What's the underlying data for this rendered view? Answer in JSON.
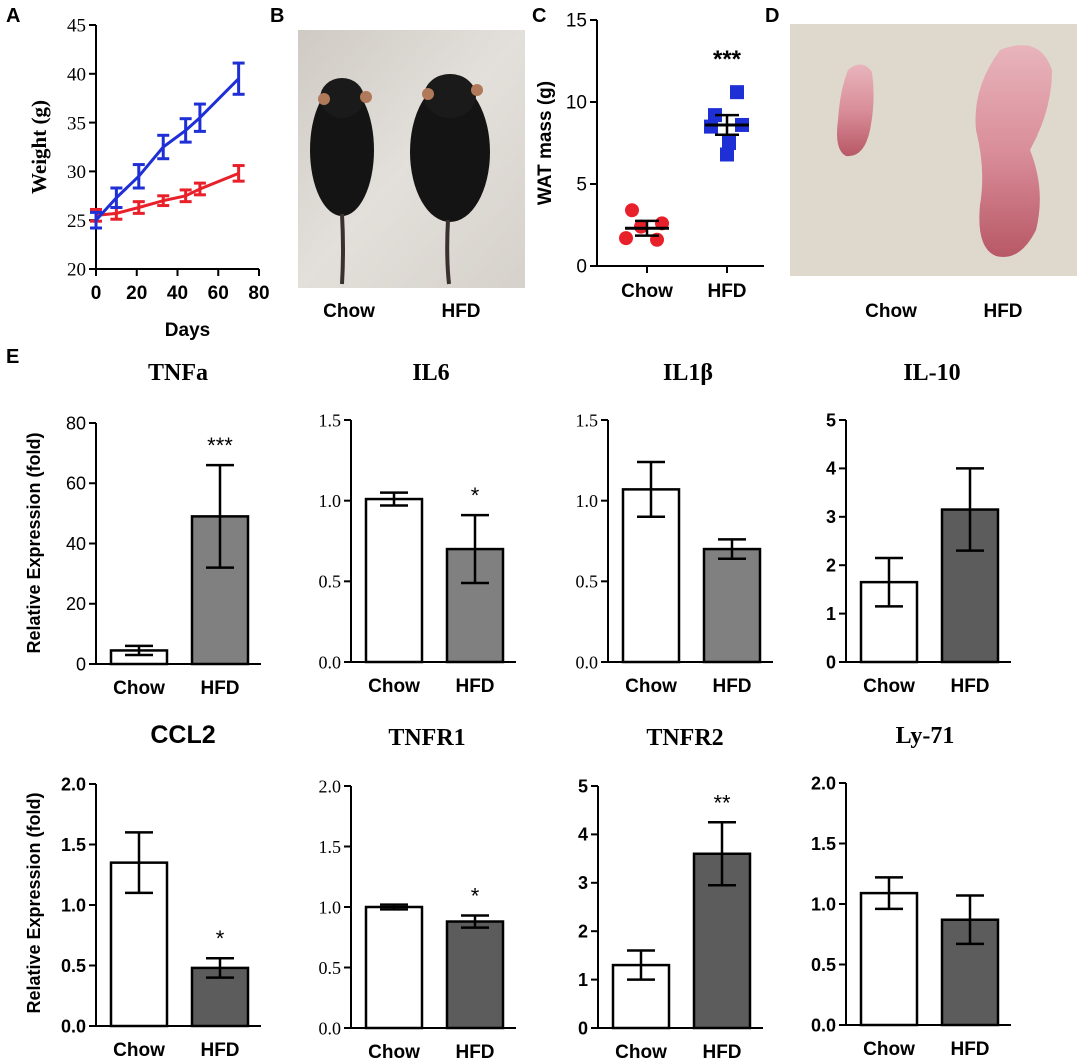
{
  "panel_labels": [
    "A",
    "B",
    "C",
    "D",
    "E"
  ],
  "colors": {
    "chow_line": "#e8202a",
    "hfd_line": "#1f2fd6",
    "bar_chow": "#ffffff",
    "bar_hfd_light": "#808080",
    "bar_hfd_dark": "#5c5c5c",
    "axis": "#000000"
  },
  "photos": {
    "mice": {
      "labels": [
        "Chow",
        "HFD"
      ],
      "icon": "mouse-photo"
    },
    "wat": {
      "labels": [
        "Chow",
        "HFD"
      ],
      "icon": "fat-tissue-photo"
    }
  },
  "chart_data": [
    {
      "id": "A",
      "type": "line",
      "xlabel": "Days",
      "ylabel": "Weight (g)",
      "xlim": [
        0,
        80
      ],
      "ylim": [
        20,
        45
      ],
      "xticks": [
        "0",
        "20",
        "40",
        "60",
        "80"
      ],
      "yticks": [
        "20",
        "25",
        "30",
        "35",
        "40",
        "45"
      ],
      "series": [
        {
          "color": "#e8202a",
          "x": [
            0,
            10,
            21,
            33,
            44,
            51,
            70
          ],
          "y": [
            25.5,
            25.7,
            26.3,
            27.0,
            27.5,
            28.2,
            29.8
          ],
          "err": [
            0.6,
            0.6,
            0.6,
            0.5,
            0.6,
            0.6,
            0.8
          ]
        },
        {
          "color": "#1f2fd6",
          "x": [
            0,
            10,
            21,
            33,
            44,
            51,
            70
          ],
          "y": [
            25.0,
            27.3,
            29.5,
            32.5,
            34.2,
            35.5,
            39.5
          ],
          "err": [
            0.8,
            1.0,
            1.2,
            1.2,
            1.2,
            1.4,
            1.6
          ]
        }
      ]
    },
    {
      "id": "C",
      "type": "scatter",
      "ylabel": "WAT mass (g)",
      "categories": [
        "Chow",
        "HFD"
      ],
      "ylim": [
        0,
        15
      ],
      "yticks": [
        "0",
        "5",
        "10",
        "15"
      ],
      "groups": [
        {
          "color": "#e8202a",
          "shape": "circle",
          "points": [
            3.4,
            2.6,
            2.4,
            1.7,
            1.6
          ],
          "mean": 2.3,
          "sem": 0.45
        },
        {
          "color": "#1f2fd6",
          "shape": "square",
          "points": [
            10.6,
            9.2,
            8.6,
            8.5,
            7.5,
            6.8
          ],
          "mean": 8.6,
          "sem": 0.6
        }
      ],
      "annotations": [
        "***"
      ]
    },
    {
      "id": "TNFa",
      "type": "bar",
      "title": "TNFa",
      "title_font": "serif",
      "ylabel": "Relative Expression  (fold)",
      "categories": [
        "Chow",
        "HFD"
      ],
      "values": [
        4.5,
        49
      ],
      "errors": [
        1.5,
        17
      ],
      "ylim": [
        0,
        80
      ],
      "yticks": [
        "0",
        "20",
        "40",
        "60",
        "80"
      ],
      "significance": "***",
      "hfd_color": "#808080"
    },
    {
      "id": "IL6",
      "type": "bar",
      "title": "IL6",
      "title_font": "serif",
      "categories": [
        "Chow",
        "HFD"
      ],
      "values": [
        1.01,
        0.7
      ],
      "errors": [
        0.04,
        0.21
      ],
      "ylim": [
        0,
        1.5
      ],
      "yticks": [
        "0.0",
        "0.5",
        "1.0",
        "1.5"
      ],
      "significance": "*",
      "hfd_color": "#808080"
    },
    {
      "id": "IL1b",
      "type": "bar",
      "title": "IL1β",
      "title_font": "serif",
      "categories": [
        "Chow",
        "HFD"
      ],
      "values": [
        1.07,
        0.7
      ],
      "errors": [
        0.17,
        0.06
      ],
      "ylim": [
        0,
        1.5
      ],
      "yticks": [
        "0.0",
        "0.5",
        "1.0",
        "1.5"
      ],
      "significance": "",
      "hfd_color": "#808080"
    },
    {
      "id": "IL10",
      "type": "bar",
      "title": "IL-10",
      "title_font": "serif",
      "categories": [
        "Chow",
        "HFD"
      ],
      "values": [
        1.65,
        3.15
      ],
      "errors": [
        0.5,
        0.85
      ],
      "ylim": [
        0,
        5
      ],
      "yticks": [
        "0",
        "1",
        "2",
        "3",
        "4",
        "5"
      ],
      "significance": "",
      "hfd_color": "#5c5c5c"
    },
    {
      "id": "CCL2",
      "type": "bar",
      "title": "CCL2",
      "title_font": "sans",
      "ylabel": "Relative Expression  (fold)",
      "categories": [
        "Chow",
        "HFD"
      ],
      "values": [
        1.35,
        0.48
      ],
      "errors": [
        0.25,
        0.08
      ],
      "ylim": [
        0,
        2.0
      ],
      "yticks": [
        "0.0",
        "0.5",
        "1.0",
        "1.5",
        "2.0"
      ],
      "significance": "*",
      "hfd_color": "#5c5c5c"
    },
    {
      "id": "TNFR1",
      "type": "bar",
      "title": "TNFR1",
      "title_font": "serif",
      "categories": [
        "Chow",
        "HFD"
      ],
      "values": [
        1.0,
        0.88
      ],
      "errors": [
        0.02,
        0.05
      ],
      "ylim": [
        0,
        2.0
      ],
      "yticks": [
        "0.0",
        "0.5",
        "1.0",
        "1.5",
        "2.0"
      ],
      "significance": "*",
      "hfd_color": "#5c5c5c"
    },
    {
      "id": "TNFR2",
      "type": "bar",
      "title": "TNFR2",
      "title_font": "serif",
      "categories": [
        "Chow",
        "HFD"
      ],
      "values": [
        1.3,
        3.6
      ],
      "errors": [
        0.3,
        0.65
      ],
      "ylim": [
        0,
        5
      ],
      "yticks": [
        "0",
        "1",
        "2",
        "3",
        "4",
        "5"
      ],
      "significance": "**",
      "hfd_color": "#5c5c5c"
    },
    {
      "id": "Ly71",
      "type": "bar",
      "title": "Ly-71",
      "title_font": "serif",
      "categories": [
        "Chow",
        "HFD"
      ],
      "values": [
        1.09,
        0.87
      ],
      "errors": [
        0.13,
        0.2
      ],
      "ylim": [
        0,
        2.0
      ],
      "yticks": [
        "0.0",
        "0.5",
        "1.0",
        "1.5",
        "2.0"
      ],
      "significance": "",
      "hfd_color": "#5c5c5c"
    }
  ]
}
